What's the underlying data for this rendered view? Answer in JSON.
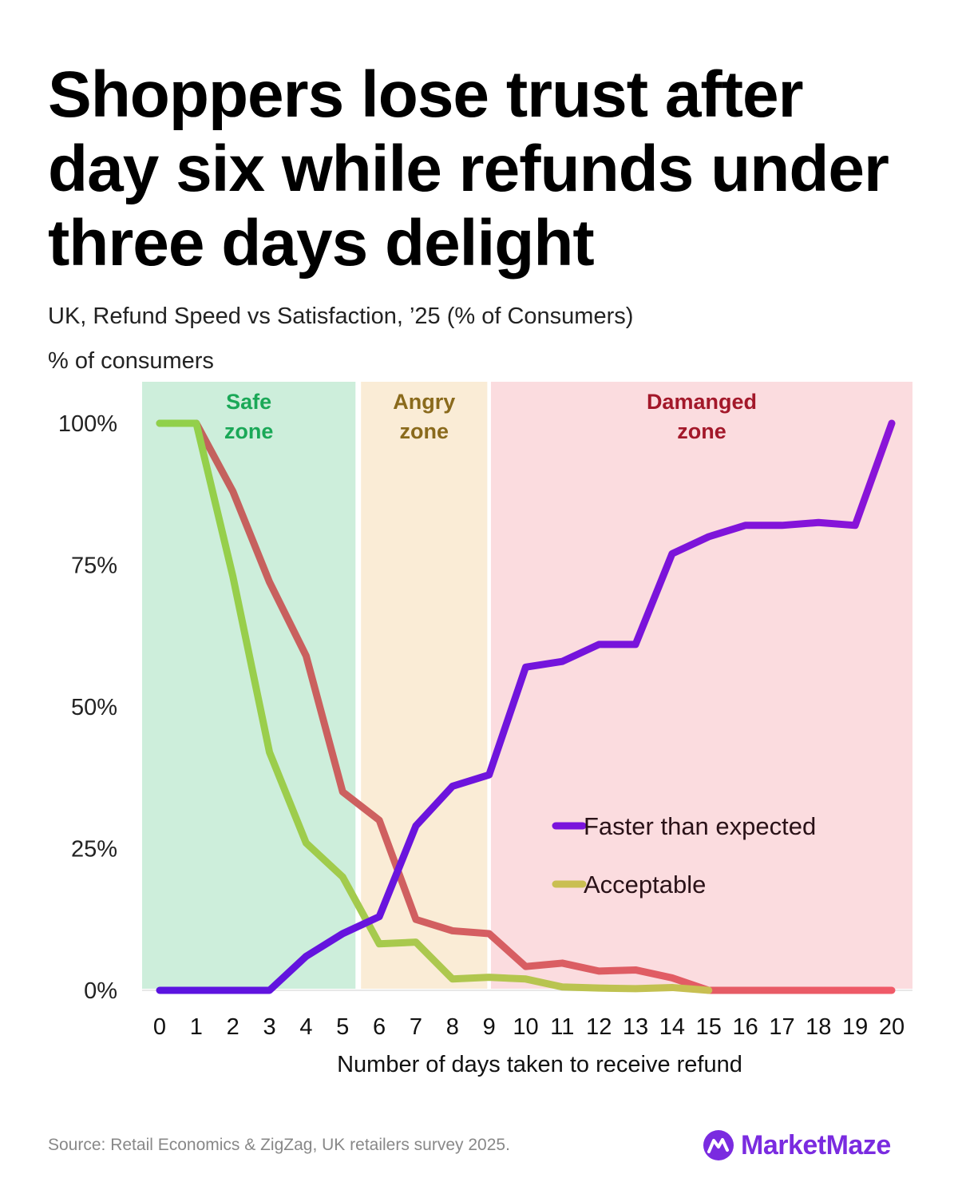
{
  "title": "Shoppers lose trust after day six while refunds under three days delight",
  "subtitle": "UK, Refund Speed vs Satisfaction, ’25 (% of Consumers)",
  "source": "Source: Retail Economics & ZigZag, UK retailers survey 2025.",
  "brand": "MarketMaze",
  "chart_data": {
    "type": "line",
    "ylabel": "% of consumers",
    "xlabel": "Number of days taken to receive refund",
    "x": [
      0,
      1,
      2,
      3,
      4,
      5,
      6,
      7,
      8,
      9,
      10,
      11,
      12,
      13,
      14,
      15,
      16,
      17,
      18,
      19,
      20
    ],
    "ylim": [
      0,
      100
    ],
    "yticks": [
      "0%",
      "25%",
      "50%",
      "75%",
      "100%"
    ],
    "ytick_values": [
      0,
      25,
      50,
      75,
      100
    ],
    "grid": false,
    "legend_position": "center-right",
    "zones": [
      {
        "label_line1": "Safe",
        "label_line2": "zone",
        "from": -0.5,
        "to": 5.35,
        "color": "#cdeedb",
        "text_color": "#1aa857"
      },
      {
        "label_line1": "Angry",
        "label_line2": "zone",
        "from": 5.5,
        "to": 8.95,
        "color": "#faecd6",
        "text_color": "#8a6a1c"
      },
      {
        "label_line1": "Damanged",
        "label_line2": "zone",
        "from": 9.05,
        "to": 20.6,
        "color": "#fbdcdf",
        "text_color": "#a3182a"
      }
    ],
    "series": [
      {
        "name": "",
        "color_start": "#c0625c",
        "color_end": "#f05a68",
        "values": [
          100,
          100,
          88,
          72,
          59,
          35,
          30,
          12.5,
          10.5,
          10,
          4.2,
          4.8,
          3.4,
          3.6,
          2.2,
          0,
          0,
          0,
          0,
          0,
          0
        ]
      },
      {
        "name": "Acceptable",
        "color_start": "#8fd14a",
        "color_end": "#c9bf52",
        "values": [
          100,
          100,
          73,
          42,
          26,
          20,
          8.2,
          8.5,
          2,
          2.3,
          2,
          0.6,
          0.4,
          0.3,
          0.5,
          0,
          null,
          null,
          null,
          null,
          null
        ]
      },
      {
        "name": "Faster than expected",
        "color_start": "#5a14e0",
        "color_end": "#8a14d8",
        "values": [
          0,
          0,
          0,
          0,
          6,
          10,
          13,
          29,
          36,
          38,
          57,
          58,
          61,
          61,
          77,
          80,
          82,
          82,
          82.5,
          82,
          100
        ]
      }
    ],
    "legend": [
      {
        "name": "Faster than expected",
        "color": "#7a14dc"
      },
      {
        "name": "Acceptable",
        "color": "#c9bf52"
      }
    ]
  }
}
